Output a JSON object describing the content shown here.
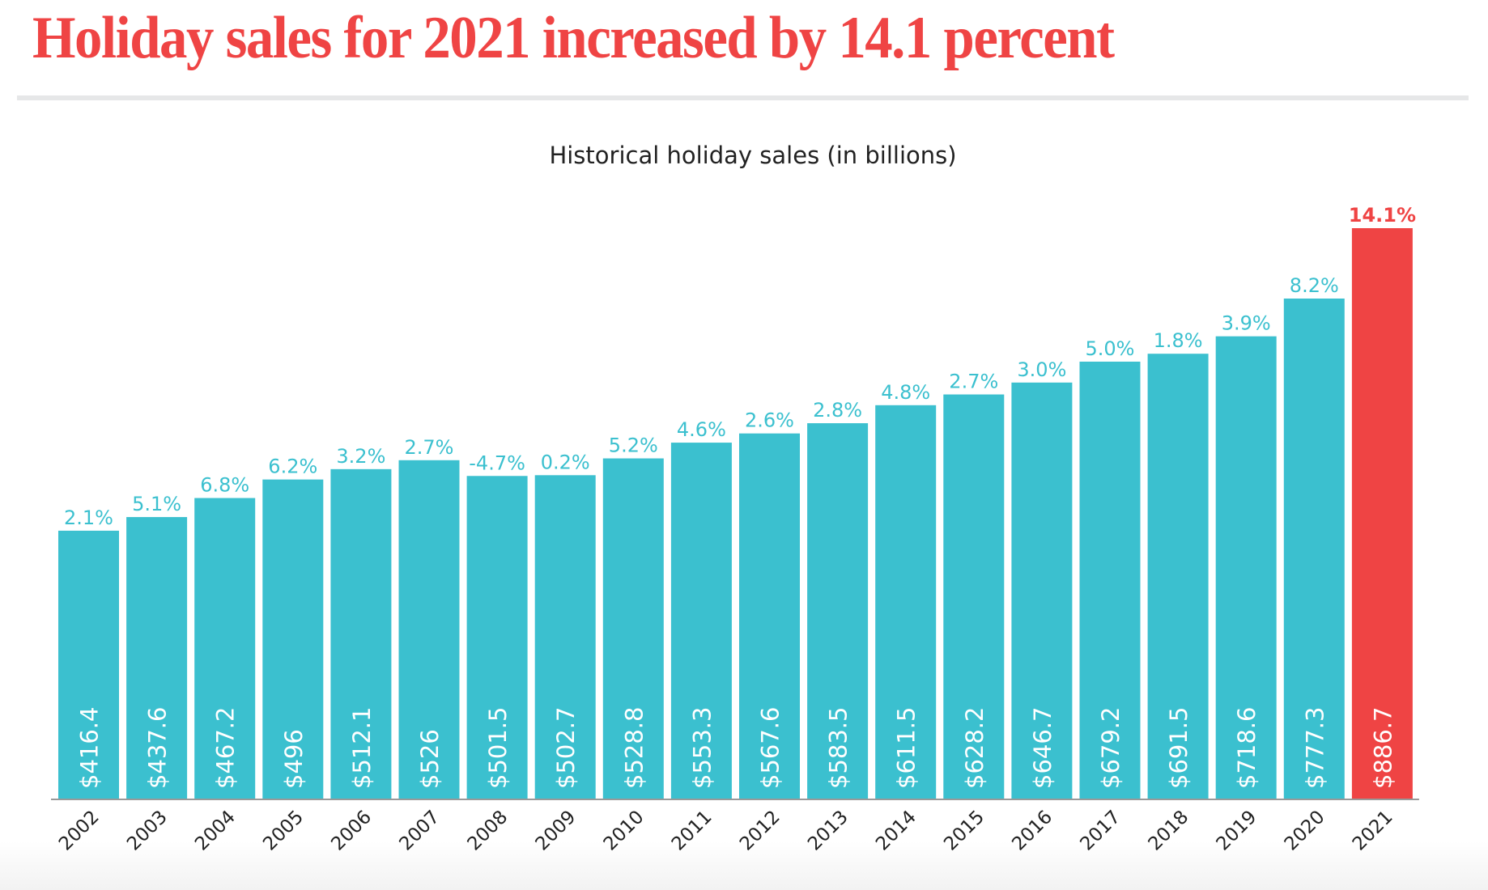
{
  "headline": "Holiday sales for 2021 increased by 14.1 percent",
  "colors": {
    "bar": "#3bc0cf",
    "highlight": "#ef4444",
    "axis": "#999999",
    "year_text": "#222222"
  },
  "chart_data": {
    "type": "bar",
    "title": "Historical holiday sales (in billions)",
    "xlabel": "",
    "ylabel": "",
    "ylim": [
      0,
      886.7
    ],
    "grid": false,
    "legend": "none",
    "categories": [
      "2002",
      "2003",
      "2004",
      "2005",
      "2006",
      "2007",
      "2008",
      "2009",
      "2010",
      "2011",
      "2012",
      "2013",
      "2014",
      "2015",
      "2016",
      "2017",
      "2018",
      "2019",
      "2020",
      "2021"
    ],
    "values": [
      416.4,
      437.6,
      467.2,
      496,
      512.1,
      526,
      501.5,
      502.7,
      528.8,
      553.3,
      567.6,
      583.5,
      611.5,
      628.2,
      646.7,
      679.2,
      691.5,
      718.6,
      777.3,
      886.7
    ],
    "value_labels": [
      "$416.4",
      "$437.6",
      "$467.2",
      "$496",
      "$512.1",
      "$526",
      "$501.5",
      "$502.7",
      "$528.8",
      "$553.3",
      "$567.6",
      "$583.5",
      "$611.5",
      "$628.2",
      "$646.7",
      "$679.2",
      "$691.5",
      "$718.6",
      "$777.3",
      "$886.7"
    ],
    "growth_labels": [
      "2.1%",
      "5.1%",
      "6.8%",
      "6.2%",
      "3.2%",
      "2.7%",
      "-4.7%",
      "0.2%",
      "5.2%",
      "4.6%",
      "2.6%",
      "2.8%",
      "4.8%",
      "2.7%",
      "3.0%",
      "5.0%",
      "1.8%",
      "3.9%",
      "8.2%",
      "14.1%"
    ],
    "highlight_category": "2021"
  }
}
